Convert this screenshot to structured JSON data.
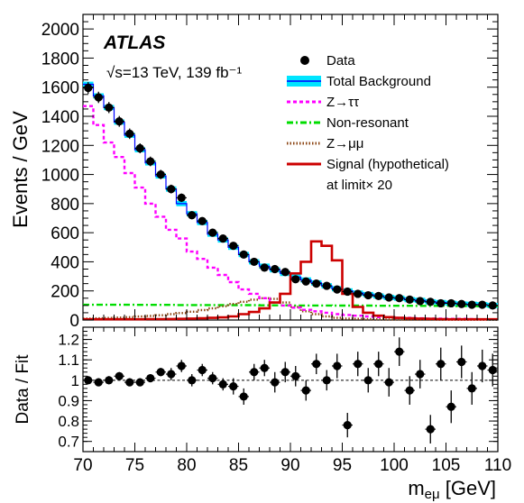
{
  "chart_data": [
    {
      "type": "histogram",
      "role": "main",
      "experiment_label": "ATLAS",
      "energy_label": "√s=13 TeV, 139 fb⁻¹",
      "xlabel": "m_eμ [GeV]",
      "ylabel": "Events / GeV",
      "xlim": [
        70,
        110
      ],
      "ylim": [
        0,
        2100
      ],
      "bin_edges": [
        70,
        71,
        72,
        73,
        74,
        75,
        76,
        77,
        78,
        79,
        80,
        81,
        82,
        83,
        84,
        85,
        86,
        87,
        88,
        89,
        90,
        91,
        92,
        93,
        94,
        95,
        96,
        97,
        98,
        99,
        100,
        101,
        102,
        103,
        104,
        105,
        106,
        107,
        108,
        109,
        110
      ],
      "xticks": [
        "70",
        "75",
        "80",
        "85",
        "90",
        "95",
        "100",
        "105",
        "110"
      ],
      "yticks": [
        "0",
        "200",
        "400",
        "600",
        "800",
        "1000",
        "1200",
        "1400",
        "1600",
        "1800",
        "2000"
      ],
      "legend": [
        {
          "label": "Data",
          "style": "marker",
          "color": "#000000"
        },
        {
          "label": "Total Background",
          "style": "band",
          "color": "#0000ff",
          "fill": "#00e5ff"
        },
        {
          "label": "Z→ττ",
          "style": "dashed",
          "color": "#ff00ff"
        },
        {
          "label": "Non-resonant",
          "style": "dashdot",
          "color": "#00dd00"
        },
        {
          "label": "Z→μμ",
          "style": "dotted",
          "color": "#8b4513"
        },
        {
          "label": "Signal (hypothetical)",
          "label2": "at limit× 20",
          "style": "solid",
          "color": "#cc0000"
        }
      ],
      "series": [
        {
          "name": "Data",
          "type": "points",
          "values": [
            1595,
            1530,
            1460,
            1365,
            1280,
            1180,
            1090,
            1000,
            900,
            840,
            720,
            680,
            600,
            560,
            510,
            450,
            400,
            360,
            350,
            330,
            280,
            265,
            250,
            235,
            210,
            195,
            180,
            170,
            165,
            155,
            150,
            140,
            130,
            125,
            115,
            115,
            110,
            105,
            105,
            100
          ],
          "errors": [
            40,
            39,
            38,
            37,
            36,
            34,
            33,
            32,
            30,
            29,
            27,
            26,
            25,
            24,
            23,
            21,
            20,
            19,
            19,
            18,
            17,
            16,
            16,
            15,
            14,
            14,
            13,
            13,
            13,
            12,
            12,
            12,
            11,
            11,
            11,
            11,
            10,
            10,
            10,
            10
          ]
        },
        {
          "name": "Total Background",
          "type": "step",
          "values": [
            1620,
            1540,
            1460,
            1360,
            1270,
            1170,
            1080,
            990,
            900,
            800,
            730,
            670,
            590,
            550,
            500,
            450,
            400,
            370,
            345,
            320,
            295,
            275,
            255,
            235,
            215,
            200,
            185,
            175,
            165,
            155,
            150,
            140,
            135,
            125,
            120,
            115,
            110,
            108,
            105,
            100
          ]
        },
        {
          "name": "Z→ττ",
          "type": "step",
          "values": [
            1470,
            1340,
            1220,
            1120,
            1010,
            910,
            800,
            710,
            620,
            560,
            470,
            420,
            360,
            310,
            260,
            210,
            180,
            150,
            120,
            100,
            85,
            70,
            60,
            50,
            40,
            35,
            30,
            25,
            20,
            20,
            15,
            15,
            12,
            10,
            10,
            8,
            8,
            6,
            5,
            5
          ]
        },
        {
          "name": "Non-resonant",
          "type": "step",
          "values": [
            105,
            105,
            105,
            105,
            105,
            104,
            104,
            104,
            104,
            103,
            103,
            103,
            103,
            102,
            102,
            102,
            102,
            101,
            101,
            101,
            100,
            100,
            100,
            100,
            99,
            99,
            99,
            99,
            98,
            98,
            98,
            98,
            97,
            97,
            97,
            97,
            96,
            96,
            96,
            96
          ]
        },
        {
          "name": "Z→μμ",
          "type": "step",
          "values": [
            10,
            12,
            14,
            17,
            20,
            24,
            28,
            33,
            40,
            48,
            57,
            68,
            80,
            95,
            110,
            125,
            140,
            150,
            145,
            120,
            90,
            60,
            40,
            25,
            15,
            10,
            8,
            6,
            5,
            4,
            4,
            3,
            3,
            3,
            2,
            2,
            2,
            2,
            2,
            2
          ]
        },
        {
          "name": "Signal (hypothetical)",
          "type": "step",
          "values": [
            5,
            5,
            5,
            5,
            5,
            5,
            6,
            6,
            7,
            8,
            10,
            12,
            15,
            18,
            25,
            40,
            55,
            80,
            120,
            180,
            320,
            400,
            540,
            510,
            410,
            180,
            90,
            50,
            30,
            20,
            15,
            12,
            10,
            8,
            6,
            5,
            5,
            5,
            5,
            5
          ]
        }
      ]
    },
    {
      "type": "scatter",
      "role": "ratio",
      "ylabel": "Data / Fit",
      "xlabel": "m_eμ [GeV]",
      "xlim": [
        70,
        110
      ],
      "ylim": [
        0.65,
        1.26
      ],
      "reference_line": 1,
      "yticks": [
        "0.7",
        "0.8",
        "0.9",
        "1",
        "1.1",
        "1.2"
      ],
      "x": [
        70.5,
        71.5,
        72.5,
        73.5,
        74.5,
        75.5,
        76.5,
        77.5,
        78.5,
        79.5,
        80.5,
        81.5,
        82.5,
        83.5,
        84.5,
        85.5,
        86.5,
        87.5,
        88.5,
        89.5,
        90.5,
        91.5,
        92.5,
        93.5,
        94.5,
        95.5,
        96.5,
        97.5,
        98.5,
        99.5,
        100.5,
        101.5,
        102.5,
        103.5,
        104.5,
        105.5,
        106.5,
        107.5,
        108.5,
        109.5
      ],
      "values": [
        1.0,
        0.99,
        1.0,
        1.02,
        0.99,
        0.99,
        1.01,
        1.04,
        1.03,
        1.07,
        1.0,
        1.05,
        1.01,
        0.98,
        0.97,
        0.92,
        1.04,
        1.06,
        0.99,
        1.04,
        1.02,
        0.95,
        1.08,
        1.0,
        1.07,
        0.78,
        1.08,
        1.0,
        1.08,
        0.99,
        1.14,
        0.95,
        1.03,
        0.76,
        1.08,
        0.87,
        1.09,
        0.96,
        1.07,
        1.05
      ],
      "errors": [
        0.02,
        0.02,
        0.02,
        0.02,
        0.02,
        0.02,
        0.02,
        0.02,
        0.03,
        0.03,
        0.03,
        0.03,
        0.03,
        0.03,
        0.04,
        0.04,
        0.04,
        0.04,
        0.05,
        0.05,
        0.05,
        0.05,
        0.05,
        0.05,
        0.06,
        0.06,
        0.06,
        0.06,
        0.06,
        0.07,
        0.07,
        0.07,
        0.07,
        0.07,
        0.08,
        0.08,
        0.08,
        0.08,
        0.08,
        0.08
      ]
    }
  ]
}
